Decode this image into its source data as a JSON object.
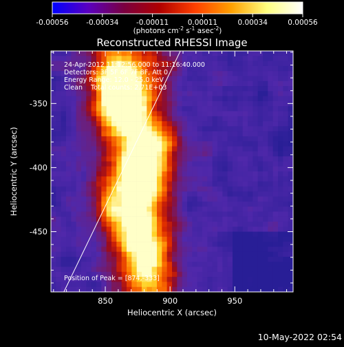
{
  "colorbar": {
    "tick_labels": [
      "-0.00056",
      "-0.00034",
      "-0.00011",
      "0.00011",
      "0.00034",
      "0.00056"
    ],
    "units_prefix": "(photons cm",
    "units_exp1": "-2",
    "units_mid": " s",
    "units_exp2": "-1",
    "units_mid2": " asec",
    "units_exp3": "-2",
    "units_suffix": ")",
    "colors": [
      "#0000ff",
      "#5a00c0",
      "#7a0040",
      "#b00000",
      "#ff4000",
      "#ffa000",
      "#ffff80",
      "#ffffff"
    ]
  },
  "plot": {
    "title": "Reconstructed RHESSI Image",
    "info_lines": [
      "24-Apr-2012 11:12:56.000 to 11:16:40.000",
      "Detectors: 3F 5F 6F 7F 8F, Att 0",
      "Energy Range: 12.0 - 25.0 keV",
      "Clean    Total counts: 2.71E+03"
    ],
    "peak_label": "Position of Peak = [874,-333]",
    "x_label": "Heliocentric X (arcsec)",
    "y_label": "Heliocentric Y (arcsec)",
    "x_ticks": [
      "850",
      "900",
      "950"
    ],
    "y_ticks": [
      "-350",
      "-400",
      "-450"
    ],
    "x_range": [
      808,
      995
    ],
    "y_range": [
      -497,
      -309
    ],
    "limb_line": [
      [
        818,
        -497
      ],
      [
        908,
        -309
      ]
    ]
  },
  "footer": {
    "timestamp": "10-May-2022 02:54"
  }
}
